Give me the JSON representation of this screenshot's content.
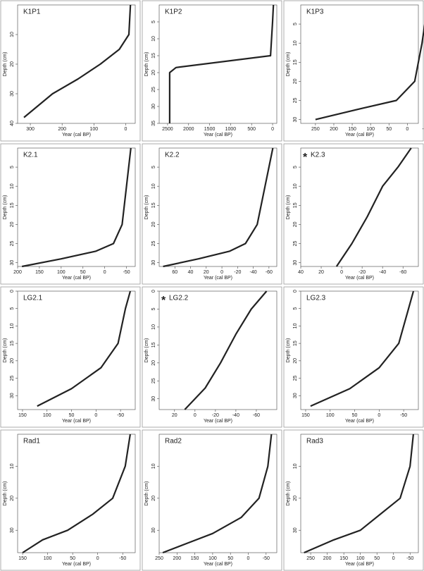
{
  "chart_data": [
    {
      "type": "line",
      "title": "K1P1",
      "xlabel": "Year (cal BP)",
      "ylabel": "Depth (cm)",
      "color": "#222222",
      "x": [
        -15,
        -10,
        20,
        80,
        150,
        230,
        320
      ],
      "values": [
        0,
        10,
        15,
        20,
        25,
        30,
        38
      ],
      "xlim": [
        340,
        -30
      ],
      "xticks": [
        300,
        200,
        100,
        0
      ],
      "ylim": [
        40,
        0
      ],
      "yticks": [
        10,
        20,
        30,
        40
      ]
    },
    {
      "type": "line",
      "title": "K1P2",
      "xlabel": "Year (cal BP)",
      "ylabel": "Depth (cm)",
      "color": "#222222",
      "x": [
        -20,
        0,
        50,
        2300,
        2450,
        2450
      ],
      "values": [
        0,
        5,
        15,
        18.5,
        20,
        35
      ],
      "xlim": [
        2700,
        -100
      ],
      "xticks": [
        2500,
        2000,
        1500,
        1000,
        500,
        0
      ],
      "ylim": [
        35,
        0
      ],
      "yticks": [
        5,
        10,
        15,
        20,
        25,
        30,
        35
      ]
    },
    {
      "type": "line",
      "title": "K1P3",
      "xlabel": "Year (cal BP)",
      "ylabel": "Depth (cm)",
      "color": "#222222",
      "x": [
        -55,
        -40,
        -20,
        30,
        120,
        250
      ],
      "values": [
        0,
        10,
        20,
        25,
        27,
        30
      ],
      "xlim": [
        290,
        -30
      ],
      "xticks": [
        250,
        200,
        150,
        100,
        50,
        0,
        -50
      ],
      "ylim": [
        31,
        0
      ],
      "yticks": [
        5,
        10,
        15,
        20,
        25,
        30
      ]
    },
    {
      "type": "line",
      "title": "K2.1",
      "xlabel": "Year (cal BP)",
      "ylabel": "Depth (cm)",
      "color": "#222222",
      "x": [
        -60,
        -50,
        -40,
        -20,
        20,
        100,
        190
      ],
      "values": [
        0,
        10,
        20,
        25,
        27,
        29,
        31
      ],
      "xlim": [
        200,
        -70
      ],
      "xticks": [
        200,
        150,
        100,
        50,
        0,
        -50
      ],
      "ylim": [
        31,
        0
      ],
      "yticks": [
        5,
        10,
        15,
        20,
        25,
        30
      ]
    },
    {
      "type": "line",
      "title": "K2.2",
      "xlabel": "Year (cal BP)",
      "ylabel": "Depth (cm)",
      "color": "#222222",
      "x": [
        -65,
        -55,
        -45,
        -30,
        -10,
        30,
        75
      ],
      "values": [
        0,
        10,
        20,
        25,
        27,
        29,
        31
      ],
      "xlim": [
        80,
        -70
      ],
      "xticks": [
        60,
        40,
        20,
        0,
        -20,
        -40,
        -60
      ],
      "ylim": [
        31,
        0
      ],
      "yticks": [
        5,
        10,
        15,
        20,
        25,
        30
      ]
    },
    {
      "type": "line",
      "title": "K2.3",
      "annotation": "*",
      "xlabel": "Year (cal BP)",
      "ylabel": "Depth (cm)",
      "color": "#222222",
      "x": [
        -68,
        -55,
        -40,
        -25,
        -10,
        5
      ],
      "values": [
        0,
        5,
        10,
        18,
        25,
        31
      ],
      "xlim": [
        40,
        -75
      ],
      "xticks": [
        40,
        20,
        0,
        -20,
        -40,
        -60
      ],
      "ylim": [
        31,
        0
      ],
      "yticks": [
        5,
        10,
        15,
        20,
        25,
        30
      ]
    },
    {
      "type": "line",
      "title": "LG2.1",
      "xlabel": "Year (cal BP)",
      "ylabel": "Depth (cm)",
      "color": "#222222",
      "x": [
        -70,
        -60,
        -45,
        -10,
        50,
        120
      ],
      "values": [
        0,
        5,
        15,
        22,
        28,
        33
      ],
      "xlim": [
        160,
        -80
      ],
      "xticks": [
        150,
        100,
        50,
        0,
        -50
      ],
      "ylim": [
        34,
        0
      ],
      "yticks": [
        0,
        5,
        10,
        15,
        20,
        25,
        30
      ]
    },
    {
      "type": "line",
      "title": "LG2.2",
      "annotation": "*",
      "xlabel": "Year (cal BP)",
      "ylabel": "Depth (cm)",
      "color": "#222222",
      "x": [
        -70,
        -55,
        -40,
        -25,
        -10,
        10
      ],
      "values": [
        0,
        5,
        12,
        20,
        27,
        33
      ],
      "xlim": [
        35,
        -80
      ],
      "xticks": [
        20,
        0,
        -20,
        -40,
        -60
      ],
      "ylim": [
        33,
        0
      ],
      "yticks": [
        0,
        5,
        10,
        15,
        20,
        25,
        30
      ]
    },
    {
      "type": "line",
      "title": "LG2.3",
      "xlabel": "Year (cal BP)",
      "ylabel": "Depth (cm)",
      "color": "#222222",
      "x": [
        -70,
        -60,
        -40,
        0,
        60,
        140
      ],
      "values": [
        0,
        5,
        15,
        22,
        28,
        33
      ],
      "xlim": [
        160,
        -80
      ],
      "xticks": [
        150,
        100,
        50,
        0,
        -50
      ],
      "ylim": [
        34,
        0
      ],
      "yticks": [
        0,
        5,
        10,
        15,
        20,
        25,
        30
      ]
    },
    {
      "type": "line",
      "title": "Rad1",
      "xlabel": "Year (cal BP)",
      "ylabel": "Depth (cm)",
      "color": "#222222",
      "x": [
        -65,
        -55,
        -30,
        10,
        60,
        110,
        150
      ],
      "values": [
        0,
        10,
        20,
        25,
        30,
        33,
        37
      ],
      "xlim": [
        160,
        -75
      ],
      "xticks": [
        150,
        100,
        50,
        0,
        -50
      ],
      "ylim": [
        37,
        0
      ],
      "yticks": [
        10,
        20,
        30
      ]
    },
    {
      "type": "line",
      "title": "Rad2",
      "xlabel": "Year (cal BP)",
      "ylabel": "Depth (cm)",
      "color": "#222222",
      "x": [
        -65,
        -55,
        -30,
        20,
        100,
        170,
        240
      ],
      "values": [
        0,
        10,
        20,
        26,
        31,
        34,
        37
      ],
      "xlim": [
        250,
        -80
      ],
      "xticks": [
        250,
        200,
        150,
        100,
        50,
        0,
        -50
      ],
      "ylim": [
        37,
        0
      ],
      "yticks": [
        10,
        20,
        30
      ]
    },
    {
      "type": "line",
      "title": "Rad3",
      "xlabel": "Year (cal BP)",
      "ylabel": "Depth (cm)",
      "color": "#222222",
      "x": [
        -60,
        -50,
        -20,
        40,
        100,
        180,
        270
      ],
      "values": [
        0,
        10,
        20,
        25,
        30,
        33,
        37
      ],
      "xlim": [
        280,
        -75
      ],
      "xticks": [
        250,
        200,
        150,
        100,
        50,
        0,
        -50
      ],
      "ylim": [
        37,
        0
      ],
      "yticks": [
        10,
        20,
        30
      ]
    }
  ]
}
